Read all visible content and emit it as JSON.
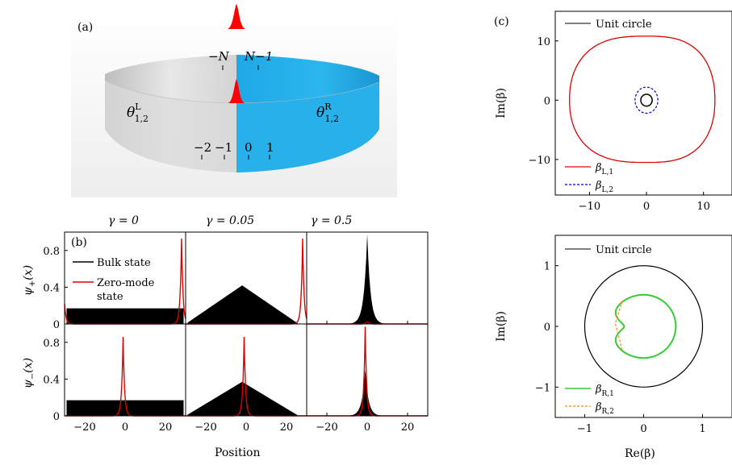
{
  "panel_a": {
    "label": "(a)",
    "site_top_left": "−N",
    "site_top_right": "N−1",
    "theta_left_base": "θ",
    "theta_left_sup": "L",
    "theta_left_sub": "1,2",
    "theta_right_base": "θ",
    "theta_right_sup": "R",
    "theta_right_sub": "1,2",
    "site_m2": "−2",
    "site_m1": "−1",
    "site_0": "0",
    "site_1": "1",
    "colors": {
      "left": "#d6d6d6",
      "right": "#22aee8",
      "peak": "#ff0000"
    }
  },
  "panel_b": {
    "label": "(b)",
    "gamma_labels": [
      "γ = 0",
      "γ = 0.05",
      "γ = 0.5"
    ],
    "ylabel_top": "ψ+(x)",
    "ylabel_top_base": "ψ",
    "ylabel_top_sub": "+",
    "ylabel_top_arg": "(x)",
    "ylabel_bottom_base": "ψ",
    "ylabel_bottom_sub": "−",
    "ylabel_bottom_arg": "(x)",
    "xlabel": "Position",
    "legend_bulk": "Bulk state",
    "legend_zero_1": "Zero-mode",
    "legend_zero_2": "state",
    "colors": {
      "bulk": "#000000",
      "zero": "#e00000"
    }
  },
  "panel_c": {
    "label": "(c)",
    "legend_unit": "Unit circle",
    "legend_L1_base": "β",
    "legend_L1_sub": "L,1",
    "legend_L2_base": "β",
    "legend_L2_sub": "L,2",
    "legend_R1_base": "β",
    "legend_R1_sub": "R,1",
    "legend_R2_base": "β",
    "legend_R2_sub": "R,2",
    "ylabel": "Im(β)",
    "xlabel": "Re(β)",
    "colors": {
      "L1": "#e00000",
      "L2": "#0000cc",
      "R1": "#33cc33",
      "R2": "#ff8800",
      "unit": "#000000"
    }
  },
  "chart_data": [
    {
      "type": "line",
      "panel": "b",
      "xlim": [
        -30,
        30
      ],
      "ylim": [
        0,
        1.0
      ],
      "x_ticks": [
        -20,
        0,
        20
      ],
      "y_ticks": [
        0,
        0.4,
        0.8
      ],
      "subplots": [
        {
          "row": "psi_plus",
          "gamma": 0,
          "bulk": {
            "shape": "flat",
            "level": 0.17
          },
          "zero_mode": {
            "peak_x": 28,
            "peak_y": 0.93,
            "second_peak_x": -30,
            "second_peak_y": 0.22
          }
        },
        {
          "row": "psi_plus",
          "gamma": 0.05,
          "bulk": {
            "shape": "triangle",
            "center": -2,
            "peak": 0.42
          },
          "zero_mode": {
            "peak_x": 28,
            "peak_y": 0.93
          }
        },
        {
          "row": "psi_plus",
          "gamma": 0.5,
          "bulk": {
            "shape": "narrow",
            "center": 0,
            "peak": 0.98
          },
          "zero_mode": {
            "peak_x": 0,
            "peak_y": 0.03
          }
        },
        {
          "row": "psi_minus",
          "gamma": 0,
          "bulk": {
            "shape": "flat",
            "level": 0.17
          },
          "zero_mode": {
            "peak_x": -1,
            "peak_y": 0.86
          }
        },
        {
          "row": "psi_minus",
          "gamma": 0.05,
          "bulk": {
            "shape": "triangle",
            "center": -2,
            "peak": 0.37
          },
          "zero_mode": {
            "peak_x": -1,
            "peak_y": 0.86
          }
        },
        {
          "row": "psi_minus",
          "gamma": 0.5,
          "bulk": {
            "shape": "narrow",
            "center": -1,
            "peak": 0.5
          },
          "zero_mode": {
            "peak_x": -1,
            "peak_y": 0.97
          }
        }
      ]
    },
    {
      "type": "line",
      "panel": "c-top",
      "xlim": [
        -16,
        15
      ],
      "ylim": [
        -16,
        15
      ],
      "x_ticks": [
        -10,
        0,
        10
      ],
      "y_ticks": [
        -10,
        0,
        10
      ],
      "series": [
        {
          "name": "β_L,1",
          "shape": "lens",
          "x_range": [
            -13.5,
            12
          ],
          "y_range": [
            -10.5,
            10.8
          ]
        },
        {
          "name": "β_L,2",
          "shape": "loop",
          "radius": 2.0
        },
        {
          "name": "Unit circle",
          "radius": 1
        }
      ]
    },
    {
      "type": "line",
      "panel": "c-bottom",
      "xlim": [
        -1.5,
        1.5
      ],
      "ylim": [
        -1.5,
        1.5
      ],
      "x_ticks": [
        -1,
        0,
        1
      ],
      "y_ticks": [
        -1,
        0,
        1
      ],
      "series": [
        {
          "name": "β_R,1",
          "shape": "kidney",
          "x_range": [
            -0.6,
            0.55
          ],
          "y_range": [
            -0.5,
            0.5
          ]
        },
        {
          "name": "β_R,2",
          "shape": "segment",
          "x_range": [
            -0.5,
            -0.35
          ]
        },
        {
          "name": "Unit circle",
          "radius": 1
        }
      ]
    }
  ]
}
